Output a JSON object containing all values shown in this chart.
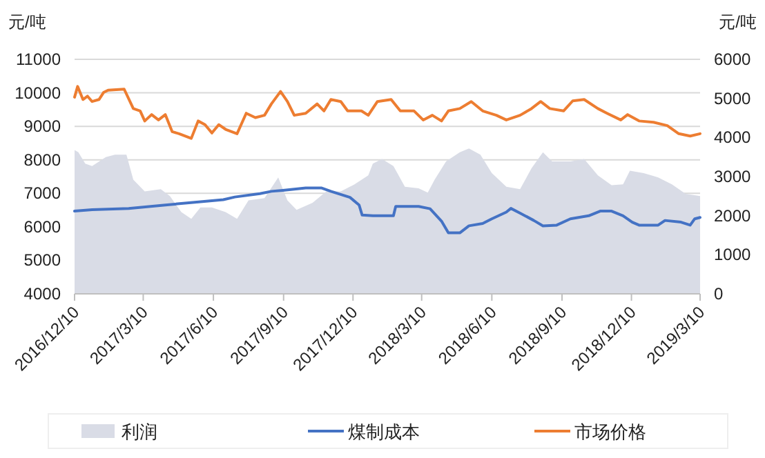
{
  "chart_data": {
    "type": "line",
    "ylabel": "元/吨",
    "y2label": "元/吨",
    "xlim": [
      "2016-12-10",
      "2019-03-10"
    ],
    "xticks": [
      {
        "value": "2016-12-10",
        "label": "2016/12/10"
      },
      {
        "value": "2017-03-10",
        "label": "2017/3/10"
      },
      {
        "value": "2017-06-10",
        "label": "2017/6/10"
      },
      {
        "value": "2017-09-10",
        "label": "2017/9/10"
      },
      {
        "value": "2017-12-10",
        "label": "2017/12/10"
      },
      {
        "value": "2018-03-10",
        "label": "2018/3/10"
      },
      {
        "value": "2018-06-10",
        "label": "2018/6/10"
      },
      {
        "value": "2018-09-10",
        "label": "2018/9/10"
      },
      {
        "value": "2018-12-10",
        "label": "2018/12/10"
      },
      {
        "value": "2019-03-10",
        "label": "2019/3/10"
      }
    ],
    "ylim": [
      4000,
      11000
    ],
    "yticks": [
      4000,
      5000,
      6000,
      7000,
      8000,
      9000,
      10000,
      11000
    ],
    "y2lim": [
      0,
      6000
    ],
    "y2ticks": [
      0,
      1000,
      2000,
      3000,
      4000,
      5000,
      6000
    ],
    "grid": "y",
    "legend": "bottom",
    "series": [
      {
        "name": "利润",
        "type": "area",
        "axis": "y2",
        "color": "#d9dce6",
        "x": [
          "2016-12-10",
          "2016-12-15",
          "2016-12-24",
          "2017-01-02",
          "2017-01-20",
          "2017-02-01",
          "2017-02-16",
          "2017-02-25",
          "2017-03-12",
          "2017-04-02",
          "2017-04-14",
          "2017-04-29",
          "2017-05-12",
          "2017-05-24",
          "2017-06-08",
          "2017-06-26",
          "2017-07-11",
          "2017-07-26",
          "2017-08-16",
          "2017-09-03",
          "2017-09-15",
          "2017-09-27",
          "2017-10-18",
          "2017-11-05",
          "2017-11-24",
          "2017-12-12",
          "2017-12-30",
          "2018-01-05",
          "2018-01-17",
          "2018-02-01",
          "2018-02-16",
          "2018-03-06",
          "2018-03-18",
          "2018-03-27",
          "2018-04-11",
          "2018-04-29",
          "2018-05-11",
          "2018-05-26",
          "2018-06-10",
          "2018-06-29",
          "2018-07-17",
          "2018-08-01",
          "2018-08-16",
          "2018-08-28",
          "2018-09-21",
          "2018-10-09",
          "2018-10-27",
          "2018-11-14",
          "2018-11-29",
          "2018-12-08",
          "2018-12-26",
          "2019-01-14",
          "2019-02-01",
          "2019-02-19",
          "2019-03-10"
        ],
        "values": [
          3680,
          3620,
          3330,
          3270,
          3500,
          3560,
          3560,
          2920,
          2620,
          2680,
          2500,
          2090,
          1920,
          2210,
          2210,
          2090,
          1920,
          2390,
          2450,
          2980,
          2390,
          2150,
          2330,
          2620,
          2620,
          2800,
          3030,
          3330,
          3450,
          3270,
          2740,
          2700,
          2590,
          2920,
          3390,
          3620,
          3720,
          3560,
          3090,
          2740,
          2680,
          3210,
          3620,
          3390,
          3390,
          3450,
          3030,
          2780,
          2800,
          3150,
          3090,
          2980,
          2800,
          2560,
          2500
        ]
      },
      {
        "name": "煤制成本",
        "color": "#4472c4",
        "x": [
          "2016-12-10",
          "2017-01-02",
          "2017-02-19",
          "2017-04-08",
          "2017-05-09",
          "2017-06-23",
          "2017-07-08",
          "2017-08-10",
          "2017-08-25",
          "2017-09-09",
          "2017-10-09",
          "2017-10-30",
          "2017-11-11",
          "2017-12-06",
          "2017-12-18",
          "2017-12-22",
          "2018-01-05",
          "2018-02-01",
          "2018-02-04",
          "2018-03-06",
          "2018-03-21",
          "2018-04-05",
          "2018-04-14",
          "2018-04-29",
          "2018-05-11",
          "2018-05-29",
          "2018-06-10",
          "2018-06-29",
          "2018-07-05",
          "2018-07-17",
          "2018-08-04",
          "2018-08-16",
          "2018-09-03",
          "2018-09-21",
          "2018-10-15",
          "2018-10-30",
          "2018-11-14",
          "2018-11-29",
          "2018-12-11",
          "2018-12-20",
          "2019-01-14",
          "2019-01-23",
          "2019-02-13",
          "2019-02-25",
          "2019-03-03",
          "2019-03-10"
        ],
        "values": [
          6470,
          6510,
          6550,
          6650,
          6720,
          6810,
          6890,
          6990,
          7060,
          7090,
          7160,
          7160,
          7060,
          6880,
          6650,
          6350,
          6330,
          6330,
          6610,
          6610,
          6540,
          6170,
          5820,
          5820,
          6030,
          6100,
          6240,
          6440,
          6550,
          6410,
          6190,
          6030,
          6050,
          6240,
          6330,
          6470,
          6470,
          6330,
          6140,
          6050,
          6050,
          6190,
          6140,
          6050,
          6240,
          6280
        ]
      },
      {
        "name": "市场价格",
        "color": "#ed7d31",
        "x": [
          "2016-12-10",
          "2016-12-14",
          "2016-12-21",
          "2016-12-27",
          "2017-01-02",
          "2017-01-11",
          "2017-01-17",
          "2017-01-23",
          "2017-02-13",
          "2017-02-25",
          "2017-03-06",
          "2017-03-12",
          "2017-03-21",
          "2017-03-30",
          "2017-04-08",
          "2017-04-17",
          "2017-04-26",
          "2017-05-12",
          "2017-05-21",
          "2017-05-30",
          "2017-06-08",
          "2017-06-17",
          "2017-06-26",
          "2017-07-11",
          "2017-07-23",
          "2017-08-04",
          "2017-08-16",
          "2017-08-25",
          "2017-09-06",
          "2017-09-15",
          "2017-09-24",
          "2017-10-09",
          "2017-10-24",
          "2017-11-02",
          "2017-11-11",
          "2017-11-24",
          "2017-12-03",
          "2017-12-21",
          "2017-12-30",
          "2018-01-11",
          "2018-01-29",
          "2018-02-10",
          "2018-02-28",
          "2018-03-12",
          "2018-03-24",
          "2018-04-05",
          "2018-04-14",
          "2018-04-29",
          "2018-05-14",
          "2018-05-29",
          "2018-06-16",
          "2018-06-29",
          "2018-07-17",
          "2018-08-01",
          "2018-08-13",
          "2018-08-25",
          "2018-09-12",
          "2018-09-24",
          "2018-10-09",
          "2018-10-27",
          "2018-11-08",
          "2018-11-26",
          "2018-12-05",
          "2018-12-20",
          "2019-01-08",
          "2019-01-26",
          "2019-02-10",
          "2019-02-25",
          "2019-03-10"
        ],
        "values": [
          9870,
          10190,
          9800,
          9900,
          9740,
          9800,
          10010,
          10080,
          10110,
          9530,
          9460,
          9160,
          9350,
          9190,
          9350,
          8840,
          8780,
          8640,
          9160,
          9050,
          8800,
          9050,
          8910,
          8780,
          9390,
          9260,
          9330,
          9670,
          10040,
          9740,
          9330,
          9390,
          9670,
          9460,
          9800,
          9740,
          9460,
          9460,
          9330,
          9740,
          9800,
          9460,
          9460,
          9190,
          9330,
          9160,
          9460,
          9530,
          9740,
          9460,
          9330,
          9190,
          9330,
          9530,
          9740,
          9530,
          9460,
          9760,
          9800,
          9530,
          9390,
          9190,
          9350,
          9160,
          9120,
          9020,
          8780,
          8710,
          8780
        ]
      }
    ]
  }
}
